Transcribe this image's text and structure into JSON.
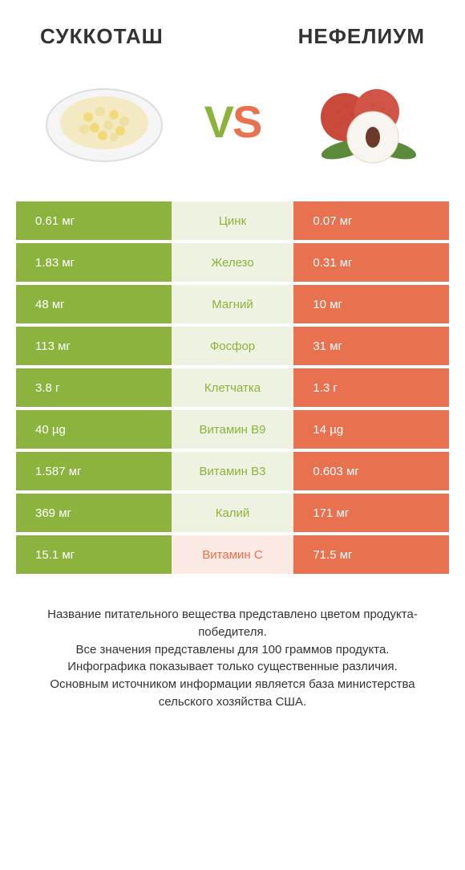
{
  "colors": {
    "left": "#8cb33d",
    "right": "#e8714f",
    "leftBg": "#eef3e1",
    "rightBg": "#fbe9e3",
    "vsLeft": "#8cb33d",
    "vsRight": "#e8714f",
    "text": "#333333"
  },
  "titles": {
    "left": "Суккоташ",
    "right": "Нефелиум"
  },
  "rows": [
    {
      "label": "Цинк",
      "left": "0.61 мг",
      "right": "0.07 мг",
      "winner": "left"
    },
    {
      "label": "Железо",
      "left": "1.83 мг",
      "right": "0.31 мг",
      "winner": "left"
    },
    {
      "label": "Магний",
      "left": "48 мг",
      "right": "10 мг",
      "winner": "left"
    },
    {
      "label": "Фосфор",
      "left": "113 мг",
      "right": "31 мг",
      "winner": "left"
    },
    {
      "label": "Клетчатка",
      "left": "3.8 г",
      "right": "1.3 г",
      "winner": "left"
    },
    {
      "label": "Витамин B9",
      "left": "40 µg",
      "right": "14 µg",
      "winner": "left"
    },
    {
      "label": "Витамин B3",
      "left": "1.587 мг",
      "right": "0.603 мг",
      "winner": "left"
    },
    {
      "label": "Калий",
      "left": "369 мг",
      "right": "171 мг",
      "winner": "left"
    },
    {
      "label": "Витамин C",
      "left": "15.1 мг",
      "right": "71.5 мг",
      "winner": "right"
    }
  ],
  "footer": [
    "Название питательного вещества представлено цветом продукта-победителя.",
    "Все значения представлены для 100 граммов продукта.",
    "Инфографика показывает только существенные различия.",
    "Основным источником информации является база министерства сельского хозяйства США."
  ]
}
